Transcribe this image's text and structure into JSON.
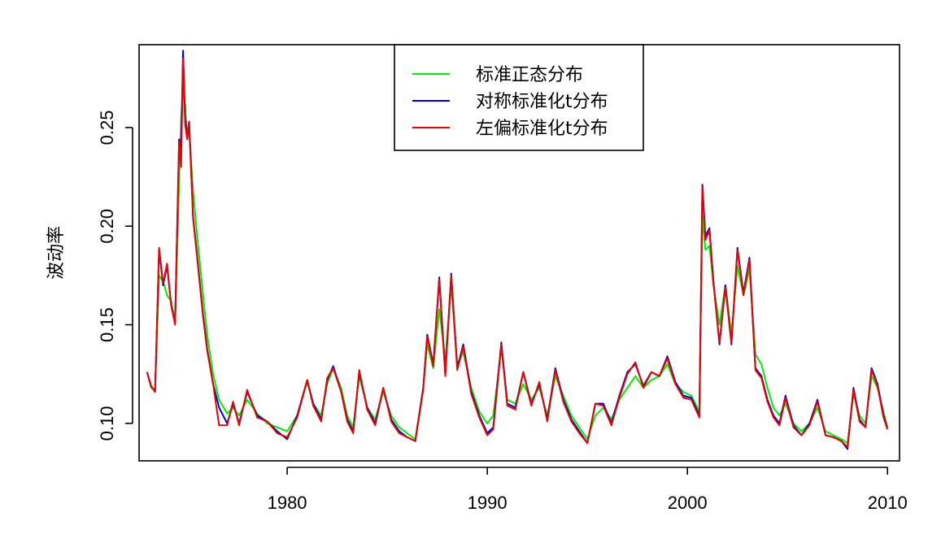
{
  "chart_data": {
    "type": "line",
    "title": "",
    "xlabel": "",
    "ylabel": "波动率",
    "xlim": [
      1972.6,
      2010.6
    ],
    "ylim": [
      0.081,
      0.292
    ],
    "x_ticks": [
      1980,
      1990,
      2000,
      2010
    ],
    "x_tick_labels": [
      "1980",
      "1990",
      "2000",
      "2010"
    ],
    "y_ticks": [
      0.1,
      0.15,
      0.2,
      0.25
    ],
    "y_tick_labels": [
      "0.10",
      "0.15",
      "0.20",
      "0.25"
    ],
    "grid": false,
    "legend_position": "top-center",
    "series": [
      {
        "name": "标准正态分布",
        "color": "#00ee00",
        "x": [
          1973.0,
          1973.2,
          1973.4,
          1973.6,
          1973.8,
          1974.0,
          1974.2,
          1974.4,
          1974.6,
          1974.7,
          1974.8,
          1974.9,
          1975.0,
          1975.1,
          1975.3,
          1975.5,
          1975.8,
          1976.0,
          1976.3,
          1976.6,
          1977.0,
          1977.3,
          1977.6,
          1978.0,
          1978.5,
          1979.0,
          1979.5,
          1980.0,
          1980.5,
          1981.0,
          1981.3,
          1981.7,
          1982.0,
          1982.3,
          1982.7,
          1983.0,
          1983.3,
          1983.6,
          1984.0,
          1984.4,
          1984.8,
          1985.2,
          1985.6,
          1986.0,
          1986.4,
          1986.8,
          1987.0,
          1987.3,
          1987.6,
          1987.9,
          1988.2,
          1988.5,
          1988.8,
          1989.2,
          1989.6,
          1990.0,
          1990.3,
          1990.7,
          1991.0,
          1991.4,
          1991.8,
          1992.2,
          1992.6,
          1993.0,
          1993.4,
          1993.8,
          1994.2,
          1994.6,
          1995.0,
          1995.4,
          1995.8,
          1996.2,
          1996.6,
          1997.0,
          1997.4,
          1997.8,
          1998.2,
          1998.6,
          1999.0,
          1999.4,
          1999.8,
          2000.2,
          2000.6,
          2000.75,
          2000.9,
          2001.1,
          2001.3,
          2001.6,
          2001.9,
          2002.2,
          2002.5,
          2002.8,
          2003.1,
          2003.4,
          2003.7,
          2004.0,
          2004.3,
          2004.6,
          2004.9,
          2005.3,
          2005.7,
          2006.1,
          2006.5,
          2006.9,
          2007.3,
          2007.7,
          2008.0,
          2008.3,
          2008.6,
          2008.9,
          2009.2,
          2009.5,
          2009.8,
          2010.0
        ],
        "y": [
          0.126,
          0.118,
          0.117,
          0.175,
          0.172,
          0.165,
          0.162,
          0.152,
          0.222,
          0.255,
          0.27,
          0.262,
          0.245,
          0.248,
          0.218,
          0.195,
          0.165,
          0.145,
          0.125,
          0.112,
          0.105,
          0.108,
          0.104,
          0.112,
          0.105,
          0.1,
          0.098,
          0.096,
          0.104,
          0.121,
          0.11,
          0.104,
          0.12,
          0.128,
          0.118,
          0.104,
          0.098,
          0.124,
          0.108,
          0.102,
          0.116,
          0.104,
          0.098,
          0.095,
          0.092,
          0.118,
          0.14,
          0.128,
          0.158,
          0.132,
          0.17,
          0.13,
          0.136,
          0.118,
          0.106,
          0.1,
          0.104,
          0.138,
          0.112,
          0.11,
          0.12,
          0.112,
          0.118,
          0.104,
          0.124,
          0.114,
          0.104,
          0.098,
          0.092,
          0.104,
          0.108,
          0.102,
          0.112,
          0.118,
          0.124,
          0.118,
          0.122,
          0.124,
          0.13,
          0.12,
          0.116,
          0.114,
          0.106,
          0.205,
          0.188,
          0.19,
          0.17,
          0.15,
          0.17,
          0.145,
          0.18,
          0.165,
          0.178,
          0.135,
          0.13,
          0.118,
          0.108,
          0.104,
          0.11,
          0.1,
          0.096,
          0.1,
          0.108,
          0.096,
          0.094,
          0.092,
          0.09,
          0.115,
          0.104,
          0.1,
          0.124,
          0.118,
          0.106,
          0.098
        ]
      },
      {
        "name": "对称标准化t分布",
        "color": "#0000cc",
        "x": [
          1973.0,
          1973.2,
          1973.4,
          1973.6,
          1973.8,
          1974.0,
          1974.2,
          1974.4,
          1974.6,
          1974.7,
          1974.8,
          1974.9,
          1975.0,
          1975.1,
          1975.3,
          1975.5,
          1975.8,
          1976.0,
          1976.3,
          1976.6,
          1977.0,
          1977.3,
          1977.6,
          1978.0,
          1978.5,
          1979.0,
          1979.5,
          1980.0,
          1980.5,
          1981.0,
          1981.3,
          1981.7,
          1982.0,
          1982.3,
          1982.7,
          1983.0,
          1983.3,
          1983.6,
          1984.0,
          1984.4,
          1984.8,
          1985.2,
          1985.6,
          1986.0,
          1986.4,
          1986.8,
          1987.0,
          1987.3,
          1987.6,
          1987.9,
          1988.2,
          1988.5,
          1988.8,
          1989.2,
          1989.6,
          1990.0,
          1990.3,
          1990.7,
          1991.0,
          1991.4,
          1991.8,
          1992.2,
          1992.6,
          1993.0,
          1993.4,
          1993.8,
          1994.2,
          1994.6,
          1995.0,
          1995.4,
          1995.8,
          1996.2,
          1996.6,
          1997.0,
          1997.4,
          1997.8,
          1998.2,
          1998.6,
          1999.0,
          1999.4,
          1999.8,
          2000.2,
          2000.6,
          2000.75,
          2000.9,
          2001.1,
          2001.3,
          2001.6,
          2001.9,
          2002.2,
          2002.5,
          2002.8,
          2003.1,
          2003.4,
          2003.7,
          2004.0,
          2004.3,
          2004.6,
          2004.9,
          2005.3,
          2005.7,
          2006.1,
          2006.5,
          2006.9,
          2007.3,
          2007.7,
          2008.0,
          2008.3,
          2008.6,
          2008.9,
          2009.2,
          2009.5,
          2009.8,
          2010.0
        ],
        "y": [
          0.126,
          0.119,
          0.116,
          0.188,
          0.17,
          0.18,
          0.16,
          0.151,
          0.244,
          0.24,
          0.289,
          0.255,
          0.245,
          0.253,
          0.205,
          0.185,
          0.155,
          0.138,
          0.12,
          0.108,
          0.1,
          0.11,
          0.1,
          0.116,
          0.104,
          0.101,
          0.096,
          0.092,
          0.104,
          0.122,
          0.11,
          0.102,
          0.122,
          0.129,
          0.116,
          0.102,
          0.096,
          0.126,
          0.108,
          0.1,
          0.118,
          0.102,
          0.096,
          0.093,
          0.091,
          0.118,
          0.145,
          0.13,
          0.174,
          0.125,
          0.176,
          0.128,
          0.14,
          0.116,
          0.104,
          0.095,
          0.098,
          0.141,
          0.11,
          0.108,
          0.126,
          0.11,
          0.12,
          0.102,
          0.128,
          0.112,
          0.102,
          0.096,
          0.09,
          0.11,
          0.11,
          0.1,
          0.114,
          0.126,
          0.13,
          0.119,
          0.126,
          0.124,
          0.134,
          0.121,
          0.114,
          0.113,
          0.104,
          0.221,
          0.195,
          0.199,
          0.172,
          0.14,
          0.17,
          0.14,
          0.189,
          0.166,
          0.184,
          0.128,
          0.124,
          0.112,
          0.104,
          0.1,
          0.114,
          0.099,
          0.094,
          0.1,
          0.112,
          0.094,
          0.093,
          0.091,
          0.087,
          0.118,
          0.102,
          0.098,
          0.128,
          0.12,
          0.104,
          0.097
        ]
      },
      {
        "name": "左偏标准化t分布",
        "color": "#ee0000",
        "x": [
          1973.0,
          1973.2,
          1973.4,
          1973.6,
          1973.8,
          1974.0,
          1974.2,
          1974.4,
          1974.6,
          1974.7,
          1974.8,
          1974.9,
          1975.0,
          1975.1,
          1975.3,
          1975.5,
          1975.8,
          1976.0,
          1976.3,
          1976.6,
          1977.0,
          1977.3,
          1977.6,
          1978.0,
          1978.5,
          1979.0,
          1979.5,
          1980.0,
          1980.5,
          1981.0,
          1981.3,
          1981.7,
          1982.0,
          1982.3,
          1982.7,
          1983.0,
          1983.3,
          1983.6,
          1984.0,
          1984.4,
          1984.8,
          1985.2,
          1985.6,
          1986.0,
          1986.4,
          1986.8,
          1987.0,
          1987.3,
          1987.6,
          1987.9,
          1988.2,
          1988.5,
          1988.8,
          1989.2,
          1989.6,
          1990.0,
          1990.3,
          1990.7,
          1991.0,
          1991.4,
          1991.8,
          1992.2,
          1992.6,
          1993.0,
          1993.4,
          1993.8,
          1994.2,
          1994.6,
          1995.0,
          1995.4,
          1995.8,
          1996.2,
          1996.6,
          1997.0,
          1997.4,
          1997.8,
          1998.2,
          1998.6,
          1999.0,
          1999.4,
          1999.8,
          2000.2,
          2000.6,
          2000.75,
          2000.9,
          2001.1,
          2001.3,
          2001.6,
          2001.9,
          2002.2,
          2002.5,
          2002.8,
          2003.1,
          2003.4,
          2003.7,
          2004.0,
          2004.3,
          2004.6,
          2004.9,
          2005.3,
          2005.7,
          2006.1,
          2006.5,
          2006.9,
          2007.3,
          2007.7,
          2008.0,
          2008.3,
          2008.6,
          2008.9,
          2009.2,
          2009.5,
          2009.8,
          2010.0
        ],
        "y": [
          0.126,
          0.119,
          0.116,
          0.189,
          0.171,
          0.181,
          0.16,
          0.15,
          0.243,
          0.23,
          0.285,
          0.252,
          0.244,
          0.253,
          0.204,
          0.184,
          0.154,
          0.137,
          0.12,
          0.099,
          0.099,
          0.111,
          0.099,
          0.117,
          0.103,
          0.101,
          0.095,
          0.093,
          0.103,
          0.122,
          0.109,
          0.101,
          0.123,
          0.128,
          0.116,
          0.101,
          0.095,
          0.127,
          0.107,
          0.099,
          0.118,
          0.101,
          0.095,
          0.093,
          0.091,
          0.117,
          0.144,
          0.129,
          0.173,
          0.124,
          0.175,
          0.127,
          0.139,
          0.115,
          0.103,
          0.094,
          0.097,
          0.14,
          0.109,
          0.107,
          0.126,
          0.109,
          0.121,
          0.101,
          0.127,
          0.111,
          0.101,
          0.095,
          0.09,
          0.11,
          0.109,
          0.099,
          0.113,
          0.125,
          0.131,
          0.118,
          0.126,
          0.124,
          0.133,
          0.12,
          0.113,
          0.112,
          0.103,
          0.22,
          0.193,
          0.198,
          0.171,
          0.141,
          0.169,
          0.141,
          0.188,
          0.165,
          0.183,
          0.127,
          0.123,
          0.111,
          0.103,
          0.099,
          0.113,
          0.098,
          0.094,
          0.099,
          0.111,
          0.094,
          0.093,
          0.091,
          0.088,
          0.117,
          0.101,
          0.098,
          0.127,
          0.119,
          0.103,
          0.097
        ]
      }
    ]
  }
}
